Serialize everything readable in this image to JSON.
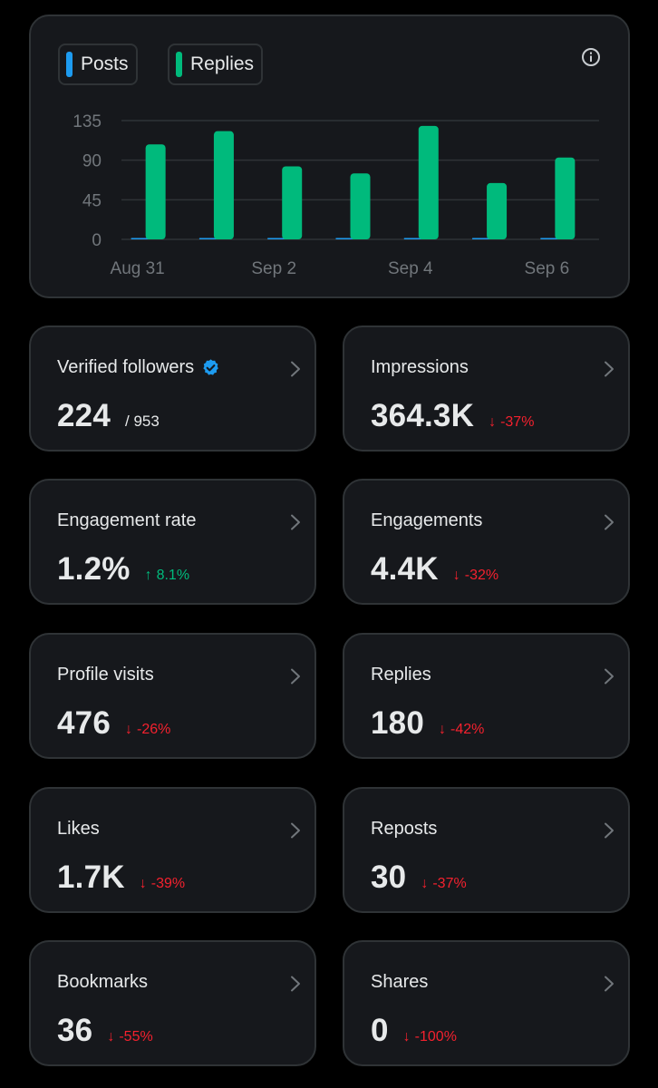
{
  "chart": {
    "legend": [
      {
        "label": "Posts",
        "color": "#1d9bf0"
      },
      {
        "label": "Replies",
        "color": "#00ba7c"
      }
    ],
    "info_icon": "info-icon"
  },
  "chart_data": {
    "type": "bar",
    "categories": [
      "Aug 31",
      "Sep 1",
      "Sep 2",
      "Sep 3",
      "Sep 4",
      "Sep 5",
      "Sep 6"
    ],
    "x_tick_labels": [
      "Aug 31",
      "Sep 2",
      "Sep 4",
      "Sep 6"
    ],
    "series": [
      {
        "name": "Posts",
        "color": "#1d9bf0",
        "values": [
          1,
          0,
          0,
          0,
          0,
          0,
          0
        ]
      },
      {
        "name": "Replies",
        "color": "#00ba7c",
        "values": [
          108,
          123,
          83,
          75,
          129,
          64,
          93
        ]
      }
    ],
    "y_ticks": [
      0,
      45,
      90,
      135
    ],
    "ylim": [
      0,
      135
    ],
    "grid": true,
    "legend_position": "top-left"
  },
  "metrics": [
    {
      "label": "Verified followers",
      "value": "224",
      "sub": "/ 953",
      "verified_icon": true
    },
    {
      "label": "Impressions",
      "value": "364.3K",
      "delta": "-37%",
      "direction": "down"
    },
    {
      "label": "Engagement rate",
      "value": "1.2%",
      "delta": "8.1%",
      "direction": "up"
    },
    {
      "label": "Engagements",
      "value": "4.4K",
      "delta": "-32%",
      "direction": "down"
    },
    {
      "label": "Profile visits",
      "value": "476",
      "delta": "-26%",
      "direction": "down"
    },
    {
      "label": "Replies",
      "value": "180",
      "delta": "-42%",
      "direction": "down"
    },
    {
      "label": "Likes",
      "value": "1.7K",
      "delta": "-39%",
      "direction": "down"
    },
    {
      "label": "Reposts",
      "value": "30",
      "delta": "-37%",
      "direction": "down"
    },
    {
      "label": "Bookmarks",
      "value": "36",
      "delta": "-55%",
      "direction": "down"
    },
    {
      "label": "Shares",
      "value": "0",
      "delta": "-100%",
      "direction": "down"
    }
  ],
  "icons": {
    "arrow_down": "↓",
    "arrow_up": "↑",
    "chevron": "chevron-right-icon",
    "verified": "verified-badge-icon"
  }
}
